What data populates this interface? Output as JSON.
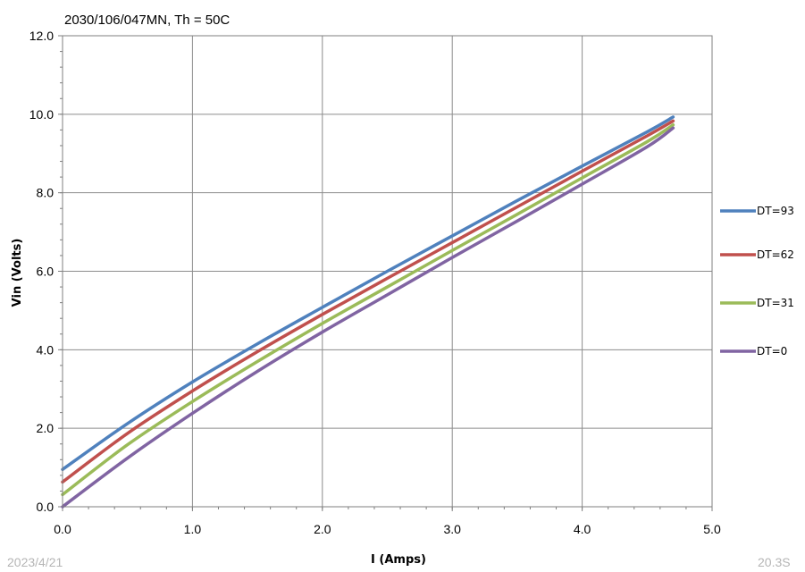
{
  "chart_data": {
    "type": "line",
    "title": "2030/106/047MN, Th = 50C",
    "xlabel": "I (Amps)",
    "ylabel": "Vin (Volts)",
    "xlim": [
      0,
      5
    ],
    "ylim": [
      0,
      12
    ],
    "x_ticks": [
      "0.0",
      "1.0",
      "2.0",
      "3.0",
      "4.0",
      "5.0"
    ],
    "y_ticks": [
      "0.0",
      "2.0",
      "4.0",
      "6.0",
      "8.0",
      "10.0",
      "12.0"
    ],
    "grid": true,
    "legend_position": "right",
    "series": [
      {
        "name": "DT=93",
        "color": "#4f81bd",
        "x": [
          0,
          0.5,
          1.0,
          1.5,
          2.0,
          2.5,
          3.0,
          3.5,
          4.0,
          4.5,
          4.7
        ],
        "y": [
          0.95,
          2.12,
          3.18,
          4.15,
          5.08,
          6.0,
          6.9,
          7.8,
          8.68,
          9.55,
          9.93
        ]
      },
      {
        "name": "DT=62",
        "color": "#c0504d",
        "x": [
          0,
          0.5,
          1.0,
          1.5,
          2.0,
          2.5,
          3.0,
          3.5,
          4.0,
          4.5,
          4.7
        ],
        "y": [
          0.63,
          1.87,
          2.95,
          3.95,
          4.9,
          5.82,
          6.73,
          7.64,
          8.55,
          9.45,
          9.83
        ]
      },
      {
        "name": "DT=31",
        "color": "#9bbb59",
        "x": [
          0,
          0.5,
          1.0,
          1.5,
          2.0,
          2.5,
          3.0,
          3.5,
          4.0,
          4.5,
          4.7
        ],
        "y": [
          0.31,
          1.58,
          2.68,
          3.7,
          4.67,
          5.6,
          6.53,
          7.45,
          8.38,
          9.3,
          9.73
        ]
      },
      {
        "name": "DT=0",
        "color": "#8064a2",
        "x": [
          0,
          0.5,
          1.0,
          1.5,
          2.0,
          2.5,
          3.0,
          3.5,
          4.0,
          4.5,
          4.7
        ],
        "y": [
          0.0,
          1.24,
          2.38,
          3.45,
          4.45,
          5.4,
          6.35,
          7.28,
          8.22,
          9.17,
          9.65
        ]
      }
    ]
  },
  "footer": {
    "date": "2023/4/21",
    "right_text": "20.3S"
  }
}
